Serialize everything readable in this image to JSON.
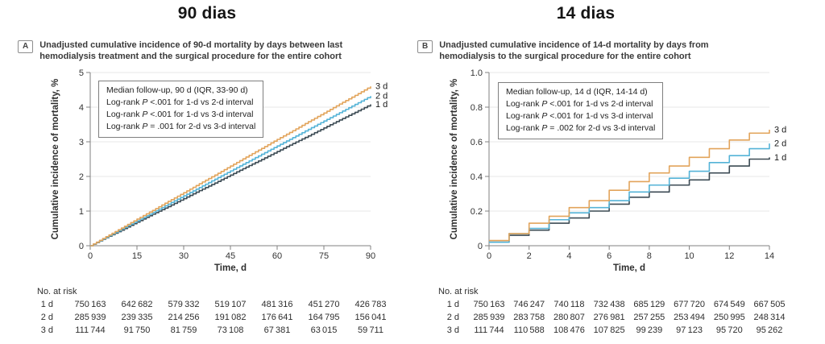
{
  "figure": {
    "background": "#ffffff",
    "grid_color": "#e7e7e7",
    "axis_color": "#828282",
    "text_color": "#333333"
  },
  "chart_data": [
    {
      "panel_label": "A",
      "panel_title": "90 dias",
      "caption_lines": [
        "Unadjusted cumulative incidence of 90-d mortality by days between last",
        "hemodialysis treatment and the surgical procedure for the entire cohort"
      ],
      "type": "line",
      "line_style": "micro-step",
      "xlabel": "Time, d",
      "ylabel": "Cumulative incidence of mortality, %",
      "xlim": [
        0,
        90
      ],
      "ylim": [
        0,
        5
      ],
      "xticks": [
        0,
        15,
        30,
        45,
        60,
        75,
        90
      ],
      "xtick_labels": [
        "0",
        "15",
        "30",
        "45",
        "60",
        "75",
        "90"
      ],
      "yticks": [
        0,
        1,
        2,
        3,
        4,
        5
      ],
      "ytick_labels": [
        "0",
        "1",
        "2",
        "3",
        "4",
        "5"
      ],
      "grid": "horizontal",
      "legend_lines": [
        [
          "Median follow-up, 90 d (IQR, 33-90 d)"
        ],
        [
          "Log-rank ",
          {
            "i": "P"
          },
          " <.001 for 1-d vs 2-d interval"
        ],
        [
          "Log-rank ",
          {
            "i": "P"
          },
          " <.001 for 1-d vs 3-d interval"
        ],
        [
          "Log-rank ",
          {
            "i": "P"
          },
          " = .001 for 2-d vs 3-d interval"
        ]
      ],
      "x": [
        0,
        5,
        10,
        15,
        20,
        25,
        30,
        35,
        40,
        45,
        50,
        55,
        60,
        65,
        70,
        75,
        80,
        85,
        90
      ],
      "series": [
        {
          "name": "1 d",
          "color": "#3c4b54",
          "values": [
            0,
            0.23,
            0.45,
            0.68,
            0.91,
            1.13,
            1.36,
            1.59,
            1.81,
            2.04,
            2.27,
            2.49,
            2.72,
            2.95,
            3.17,
            3.4,
            3.63,
            3.85,
            4.08
          ]
        },
        {
          "name": "2 d",
          "color": "#54b3d7",
          "values": [
            0,
            0.24,
            0.48,
            0.72,
            0.96,
            1.2,
            1.44,
            1.68,
            1.92,
            2.16,
            2.4,
            2.64,
            2.88,
            3.12,
            3.36,
            3.6,
            3.84,
            4.08,
            4.32
          ]
        },
        {
          "name": "3 d",
          "color": "#e2a45b",
          "values": [
            0,
            0.26,
            0.51,
            0.77,
            1.02,
            1.28,
            1.53,
            1.79,
            2.04,
            2.3,
            2.56,
            2.81,
            3.07,
            3.32,
            3.58,
            3.83,
            4.09,
            4.34,
            4.6
          ]
        }
      ],
      "risk_table": {
        "title": "No. at risk",
        "rows": [
          {
            "label": "1 d",
            "values": [
              "750 163",
              "642 682",
              "579 332",
              "519 107",
              "481 316",
              "451 270",
              "426 783"
            ]
          },
          {
            "label": "2 d",
            "values": [
              "285 939",
              "239 335",
              "214 256",
              "191 082",
              "176 641",
              "164 795",
              "156 041"
            ]
          },
          {
            "label": "3 d",
            "values": [
              "111 744",
              "91 750",
              "81 759",
              "73 108",
              "67 381",
              "63 015",
              "59 711"
            ]
          }
        ]
      }
    },
    {
      "panel_label": "B",
      "panel_title": "14 dias",
      "caption_lines": [
        "Unadjusted cumulative incidence of 14-d mortality by days from",
        "hemodialysis to the surgical procedure for the entire cohort"
      ],
      "type": "line",
      "line_style": "step",
      "xlabel": "Time, d",
      "ylabel": "Cumulative incidence of mortality, %",
      "xlim": [
        0,
        14
      ],
      "ylim": [
        0,
        1.0
      ],
      "xticks": [
        0,
        2,
        4,
        6,
        8,
        10,
        12,
        14
      ],
      "xtick_labels": [
        "0",
        "2",
        "4",
        "6",
        "8",
        "10",
        "12",
        "14"
      ],
      "yticks": [
        0,
        0.2,
        0.4,
        0.6,
        0.8,
        1.0
      ],
      "ytick_labels": [
        "0",
        "0.2",
        "0.4",
        "0.6",
        "0.8",
        "1.0"
      ],
      "grid": "horizontal",
      "legend_lines": [
        [
          "Median follow-up, 14 d (IQR, 14-14 d)"
        ],
        [
          "Log-rank ",
          {
            "i": "P"
          },
          " <.001 for 1-d vs 2-d interval"
        ],
        [
          "Log-rank ",
          {
            "i": "P"
          },
          " <.001 for 1-d vs 3-d interval"
        ],
        [
          "Log-rank ",
          {
            "i": "P"
          },
          " = .002 for 2-d vs 3-d interval"
        ]
      ],
      "x": [
        0,
        1,
        2,
        3,
        4,
        5,
        6,
        7,
        8,
        9,
        10,
        11,
        12,
        13,
        14
      ],
      "series": [
        {
          "name": "1 d",
          "color": "#3c4b54",
          "values": [
            0.02,
            0.06,
            0.09,
            0.13,
            0.16,
            0.2,
            0.24,
            0.28,
            0.31,
            0.35,
            0.38,
            0.42,
            0.46,
            0.5,
            0.51
          ]
        },
        {
          "name": "2 d",
          "color": "#54b3d7",
          "values": [
            0.02,
            0.07,
            0.1,
            0.15,
            0.19,
            0.22,
            0.26,
            0.31,
            0.35,
            0.39,
            0.43,
            0.48,
            0.52,
            0.56,
            0.59
          ]
        },
        {
          "name": "3 d",
          "color": "#e2a45b",
          "values": [
            0.03,
            0.07,
            0.13,
            0.17,
            0.22,
            0.26,
            0.32,
            0.37,
            0.42,
            0.46,
            0.51,
            0.56,
            0.61,
            0.65,
            0.67
          ]
        }
      ],
      "risk_table": {
        "title": "No. at risk",
        "rows": [
          {
            "label": "1 d",
            "values": [
              "750 163",
              "746 247",
              "740 118",
              "732 438",
              "685 129",
              "677 720",
              "674 549",
              "667 505"
            ]
          },
          {
            "label": "2 d",
            "values": [
              "285 939",
              "283 758",
              "280 807",
              "276 981",
              "257 255",
              "253 494",
              "250 995",
              "248 314"
            ]
          },
          {
            "label": "3 d",
            "values": [
              "111 744",
              "110 588",
              "108 476",
              "107 825",
              "99 239",
              "97 123",
              "95 720",
              "95 262"
            ]
          }
        ]
      }
    }
  ]
}
